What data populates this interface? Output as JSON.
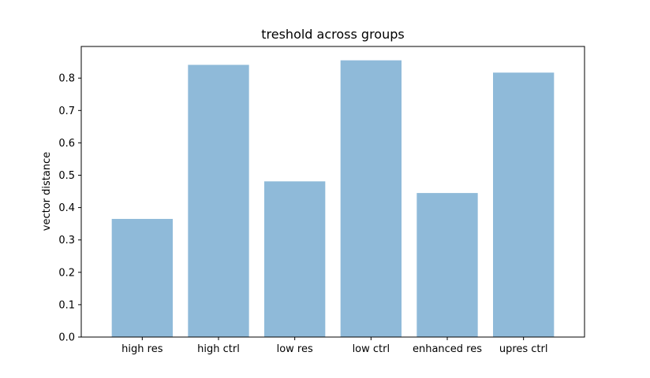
{
  "chart_data": {
    "type": "bar",
    "title": "treshold across groups",
    "xlabel": "",
    "ylabel": "vector distance",
    "categories": [
      "high res",
      "high ctrl",
      "low res",
      "low ctrl",
      "enhanced res",
      "upres ctrl"
    ],
    "values": [
      0.365,
      0.841,
      0.481,
      0.855,
      0.445,
      0.817
    ],
    "ylim": [
      0,
      0.8978
    ],
    "yticks": [
      "0.0",
      "0.1",
      "0.2",
      "0.3",
      "0.4",
      "0.5",
      "0.6",
      "0.7",
      "0.8"
    ],
    "bar_color": "#8fbad9",
    "grid": false,
    "legend": "none"
  }
}
